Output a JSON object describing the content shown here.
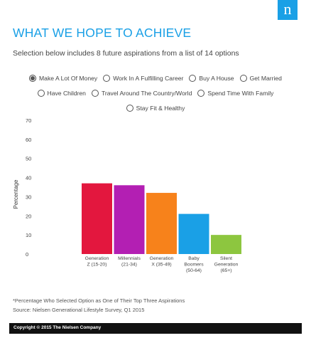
{
  "logo": "n",
  "title": "WHAT WE HOPE TO ACHIEVE",
  "subtitle": "Selection below includes 8 future aspirations from a list of 14 options",
  "options": [
    {
      "label": "Make A Lot Of Money",
      "selected": true
    },
    {
      "label": "Work In A Fulfilling Career",
      "selected": false
    },
    {
      "label": "Buy A House",
      "selected": false
    },
    {
      "label": "Get Married",
      "selected": false
    },
    {
      "label": "Have Children",
      "selected": false
    },
    {
      "label": "Travel Around The Country/World",
      "selected": false
    },
    {
      "label": "Spend Time With Family",
      "selected": false
    },
    {
      "label": "Stay Fit & Healthy",
      "selected": false
    }
  ],
  "chart_data": {
    "type": "bar",
    "ylabel": "Percentage",
    "ylim": [
      0,
      70
    ],
    "yticks": [
      0,
      10,
      20,
      30,
      40,
      50,
      60,
      70
    ],
    "grid": false,
    "categories": [
      [
        "Generation",
        "Z (15-20)"
      ],
      [
        "Millennials",
        "(21-34)"
      ],
      [
        "Generation",
        "X (35-49)"
      ],
      [
        "Baby",
        "Boomers",
        "(50-64)"
      ],
      [
        "Silent",
        "Generation",
        "(65+)"
      ]
    ],
    "values": [
      37,
      36,
      32,
      21,
      10
    ],
    "colors": [
      "#e3173e",
      "#b31fb3",
      "#f7821b",
      "#1aa0e6",
      "#8dc63f"
    ]
  },
  "footnote": "*Percentage Who Selected Option as One of Their Top Three Aspirations",
  "source": "Source: Nielsen Generational Lifestyle Survey, Q1 2015",
  "copyright": "Copyright © 2015 The Nielsen Company"
}
